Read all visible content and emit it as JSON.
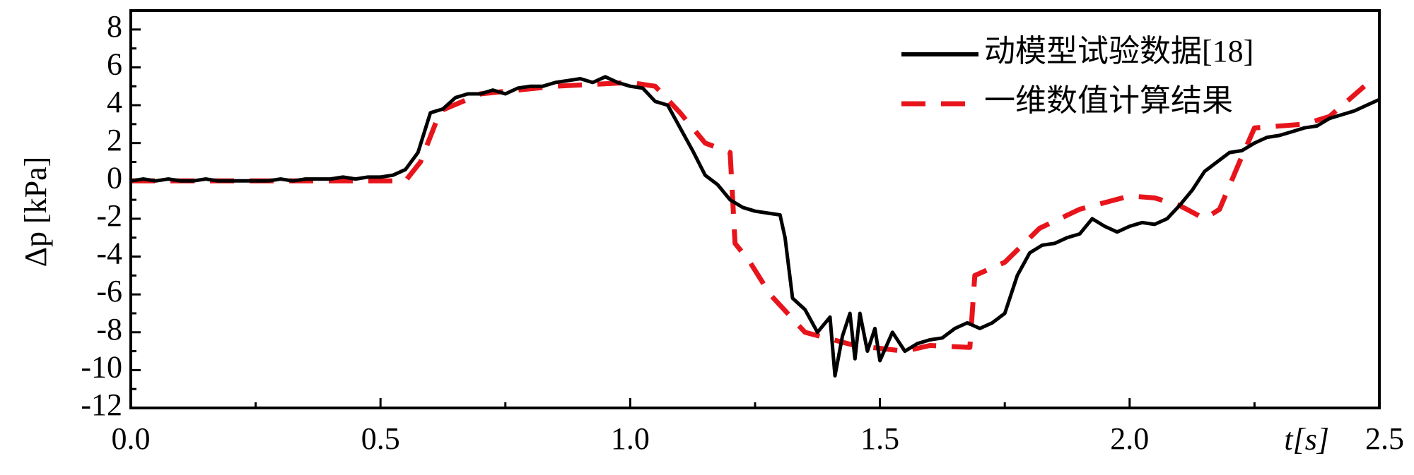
{
  "chart_data": {
    "type": "line",
    "xlabel": "t[s]",
    "ylabel": "Δp [kPa]",
    "xlim": [
      0,
      2.5
    ],
    "ylim": [
      -12,
      9
    ],
    "xticks": [
      {
        "value": 0,
        "label": "0.0"
      },
      0.5,
      {
        "value": 1,
        "label": "1.0"
      },
      1.5,
      {
        "value": 2,
        "label": "2.0"
      },
      2.5
    ],
    "xminorticks": [
      0.25,
      0.75,
      1.25,
      1.75,
      2.25
    ],
    "yticks": [
      8,
      6,
      4,
      2,
      0,
      -2,
      -4,
      -6,
      -8,
      -10,
      -12
    ],
    "yminorticks": [
      7,
      5,
      3,
      1,
      -1,
      -3,
      -5,
      -7,
      -9,
      -11
    ],
    "grid": false,
    "legend": "upper right",
    "series": [
      {
        "name": "动模型试验数据[18]",
        "color": "#000000",
        "dash": false,
        "x": [
          0,
          0.025,
          0.05,
          0.075,
          0.1,
          0.125,
          0.15,
          0.175,
          0.2,
          0.225,
          0.25,
          0.275,
          0.3,
          0.325,
          0.35,
          0.375,
          0.4,
          0.425,
          0.45,
          0.475,
          0.5,
          0.525,
          0.55,
          0.575,
          0.6,
          0.625,
          0.65,
          0.675,
          0.7,
          0.725,
          0.75,
          0.775,
          0.8,
          0.825,
          0.85,
          0.875,
          0.9,
          0.925,
          0.95,
          0.975,
          1.0,
          1.025,
          1.05,
          1.075,
          1.1,
          1.125,
          1.15,
          1.175,
          1.2,
          1.225,
          1.25,
          1.275,
          1.3,
          1.31,
          1.325,
          1.35,
          1.375,
          1.4,
          1.41,
          1.425,
          1.44,
          1.45,
          1.46,
          1.475,
          1.49,
          1.5,
          1.525,
          1.55,
          1.575,
          1.6,
          1.625,
          1.65,
          1.675,
          1.7,
          1.725,
          1.75,
          1.775,
          1.8,
          1.825,
          1.85,
          1.875,
          1.9,
          1.925,
          1.95,
          1.975,
          2.0,
          2.025,
          2.05,
          2.075,
          2.1,
          2.125,
          2.15,
          2.175,
          2.2,
          2.225,
          2.25,
          2.275,
          2.3,
          2.325,
          2.35,
          2.375,
          2.4,
          2.425,
          2.45,
          2.475,
          2.5
        ],
        "values": [
          0,
          0.1,
          0,
          0.1,
          0,
          0,
          0.1,
          0,
          0,
          0,
          0,
          0,
          0.1,
          0,
          0.1,
          0.1,
          0.1,
          0.2,
          0.1,
          0.2,
          0.2,
          0.3,
          0.6,
          1.5,
          3.6,
          3.8,
          4.4,
          4.6,
          4.6,
          4.8,
          4.6,
          4.9,
          5.0,
          5.0,
          5.2,
          5.3,
          5.4,
          5.2,
          5.5,
          5.2,
          5.0,
          4.9,
          4.2,
          4.0,
          2.8,
          1.6,
          0.3,
          -0.2,
          -1.0,
          -1.4,
          -1.6,
          -1.7,
          -1.8,
          -3,
          -6.2,
          -6.8,
          -8.0,
          -7.2,
          -10.3,
          -8.2,
          -7.0,
          -9.4,
          -7.0,
          -9.0,
          -7.8,
          -9.5,
          -8.0,
          -9.0,
          -8.6,
          -8.4,
          -8.3,
          -7.8,
          -7.5,
          -7.8,
          -7.5,
          -7.0,
          -5.0,
          -3.8,
          -3.4,
          -3.3,
          -3.0,
          -2.8,
          -2.0,
          -2.4,
          -2.7,
          -2.4,
          -2.2,
          -2.3,
          -2.0,
          -1.3,
          -0.5,
          0.5,
          1.0,
          1.5,
          1.6,
          2.0,
          2.3,
          2.4,
          2.6,
          2.8,
          2.9,
          3.3,
          3.5,
          3.7,
          4.0,
          4.3
        ]
      },
      {
        "name": "一维数值计算结果",
        "color": "#e8141b",
        "dash": true,
        "x": [
          0,
          0.55,
          0.58,
          0.62,
          0.7,
          0.85,
          1.0,
          1.05,
          1.1,
          1.15,
          1.2,
          1.21,
          1.24,
          1.28,
          1.35,
          1.45,
          1.55,
          1.6,
          1.68,
          1.69,
          1.75,
          1.82,
          1.9,
          2.0,
          2.05,
          2.1,
          2.15,
          2.18,
          2.22,
          2.25,
          2.35,
          2.4,
          2.47
        ],
        "values": [
          0,
          0,
          1.0,
          3.7,
          4.6,
          5.0,
          5.2,
          5.0,
          3.6,
          2.0,
          1.5,
          -3.3,
          -4.3,
          -6.0,
          -8.0,
          -8.7,
          -9.0,
          -8.7,
          -8.8,
          -5.0,
          -4.3,
          -2.5,
          -1.5,
          -0.8,
          -0.9,
          -1.3,
          -2.0,
          -1.5,
          1.0,
          2.8,
          3.0,
          3.4,
          5.0
        ]
      }
    ]
  }
}
